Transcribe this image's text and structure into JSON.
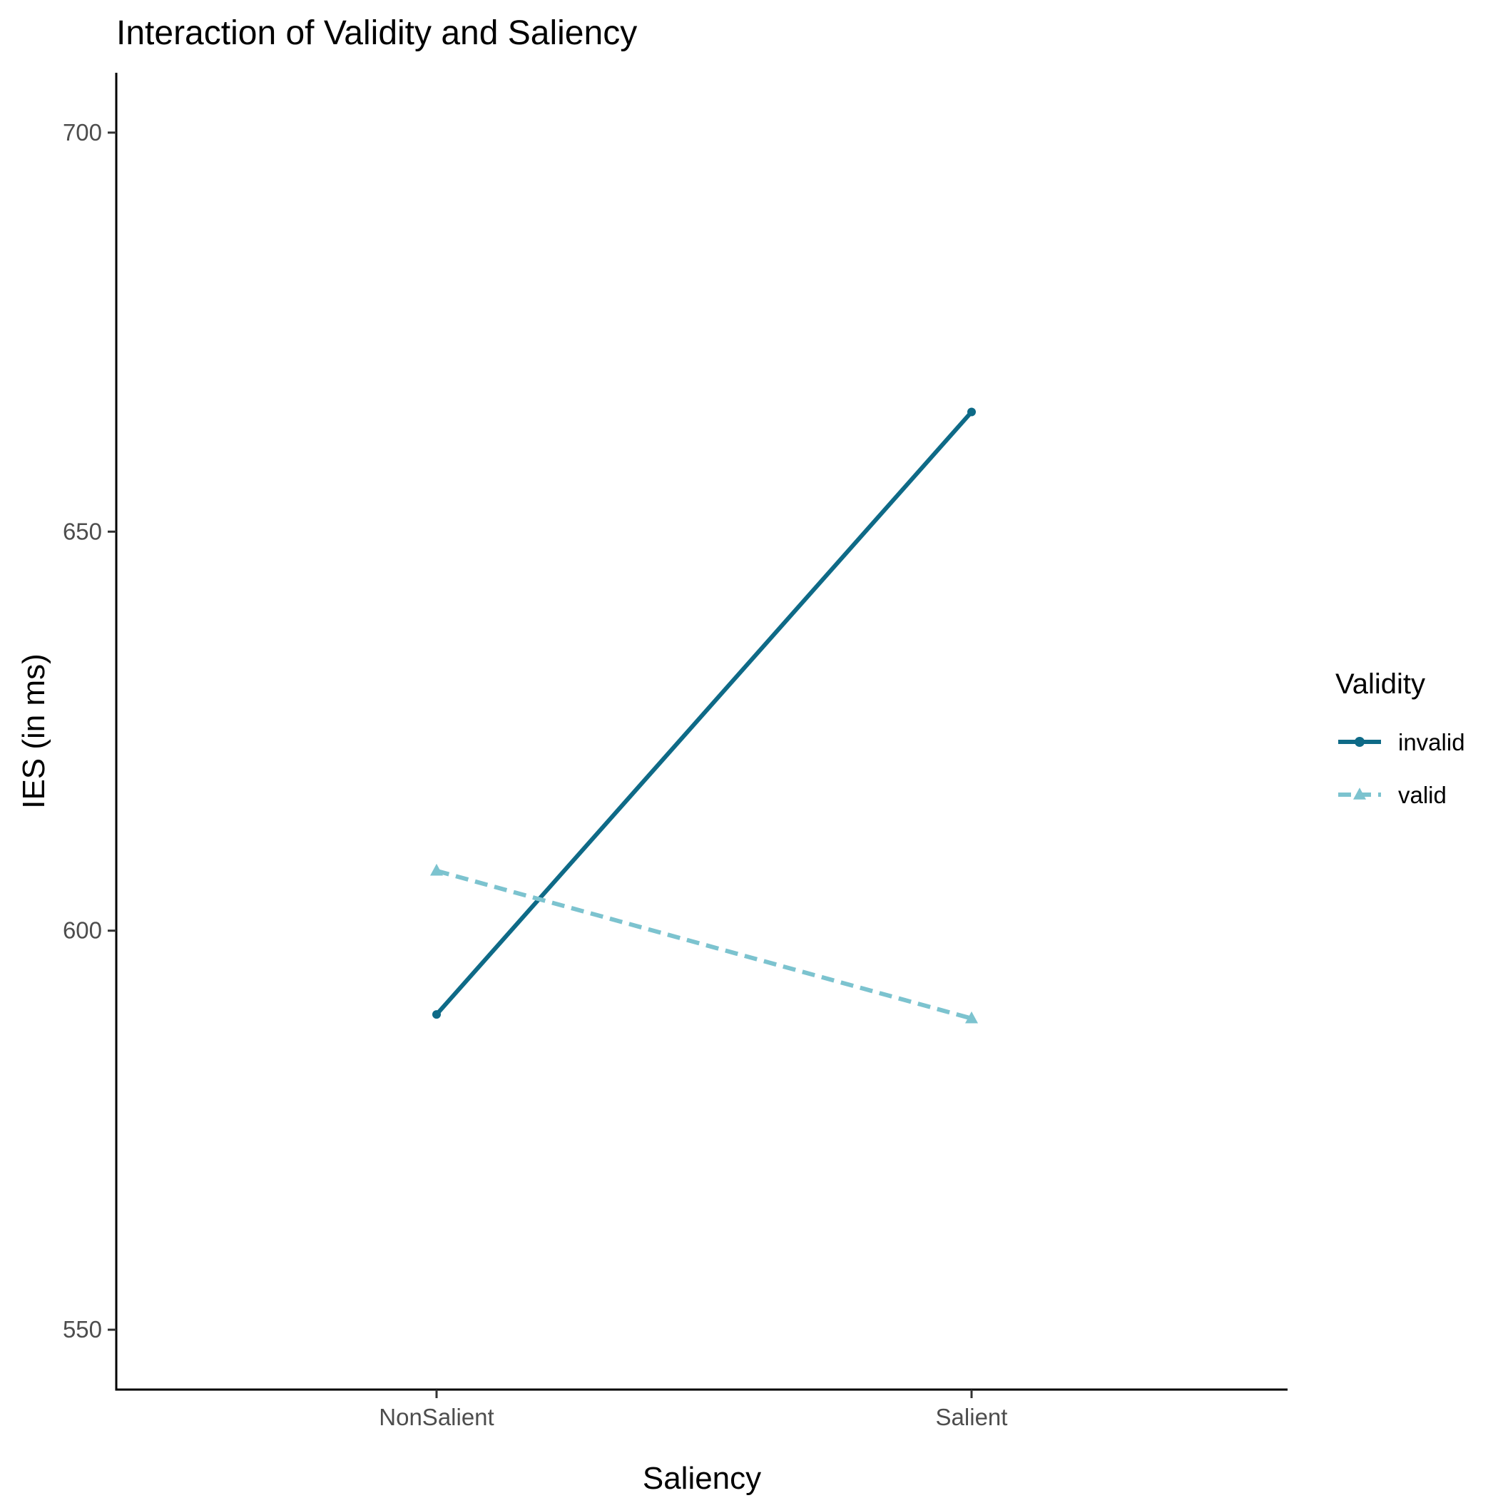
{
  "chart_data": {
    "type": "line",
    "title": "Interaction of Validity and Saliency",
    "xlabel": "Saliency",
    "ylabel": "IES (in ms)",
    "categories": [
      "NonSalient",
      "Salient"
    ],
    "ylim": [
      542.5,
      707.5
    ],
    "yticks": [
      550,
      600,
      650,
      700
    ],
    "grid": false,
    "legend": {
      "title": "Validity",
      "position": "right"
    },
    "series": [
      {
        "name": "invalid",
        "values": [
          589.5,
          665.0
        ],
        "color": "#0e6a87",
        "linestyle": "solid",
        "marker": "circle"
      },
      {
        "name": "valid",
        "values": [
          607.5,
          589.0
        ],
        "color": "#7cc3cf",
        "linestyle": "dashed",
        "marker": "triangle"
      }
    ]
  }
}
